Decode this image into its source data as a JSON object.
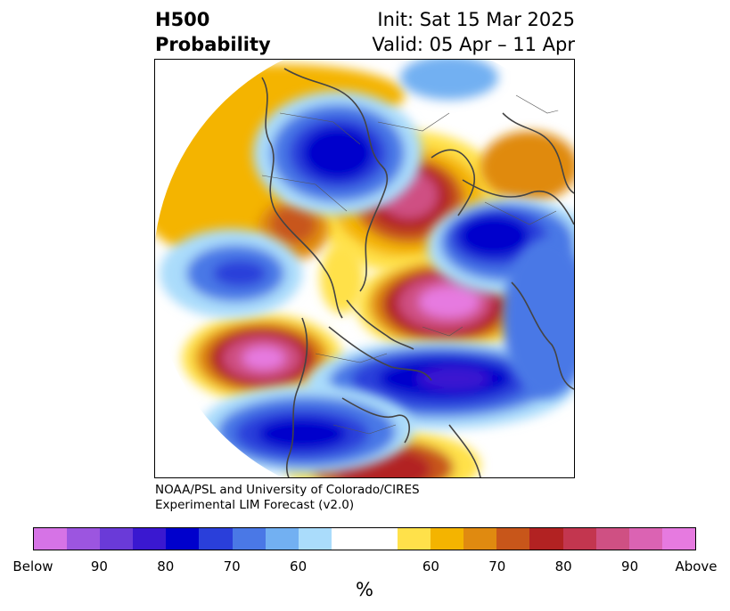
{
  "header": {
    "title_line1": "H500",
    "title_line2": "Probability",
    "init": "Init: Sat 15 Mar 2025",
    "valid": "Valid: 05 Apr – 11 Apr"
  },
  "map": {
    "projection": "north-polar-stereographic",
    "field": "H500 probability"
  },
  "credit": {
    "line1": "NOAA/PSL and University of Colorado/CIRES",
    "line2": "Experimental LIM Forecast (v2.0)"
  },
  "colorbar": {
    "unit_label": "%",
    "below_colors": [
      "#d673e6",
      "#9c55e0",
      "#6a3ad8",
      "#3a18d0",
      "#0000cc",
      "#2a3fda",
      "#4a78e6",
      "#72b0f2",
      "#aadcfb"
    ],
    "neutral_color": "#ffffff",
    "above_colors": [
      "#ffe14a",
      "#f4b400",
      "#e08a10",
      "#c8561a",
      "#b22222",
      "#c3364f",
      "#cf5083",
      "#db63b3",
      "#e67ae0"
    ],
    "ticks": [
      "Below",
      "90",
      "80",
      "70",
      "60",
      "60",
      "70",
      "80",
      "90",
      "Above"
    ]
  }
}
